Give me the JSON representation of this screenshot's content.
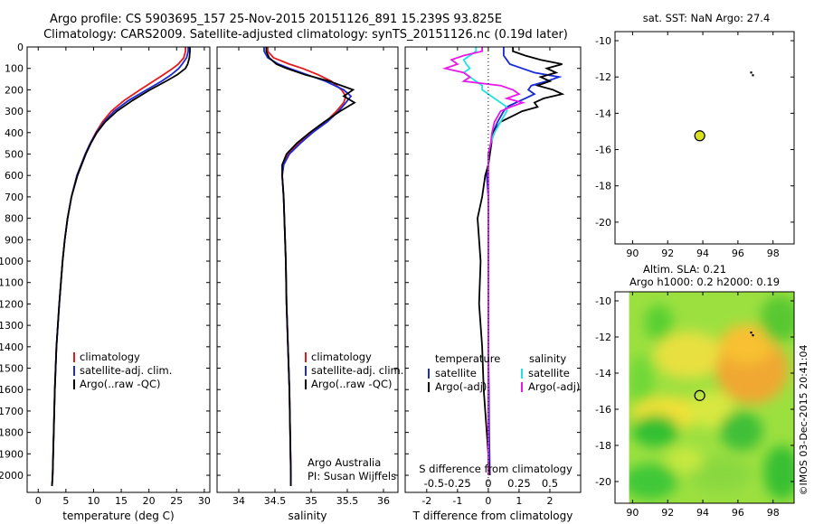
{
  "header": {
    "line1": "Argo profile: CS 5903695_157 25-Nov-2015 20151126_891 15.239S 93.825E",
    "line2": "Climatology: CARS2009. Satellite-adjusted climatology: synTS_20151126.nc (0.19d later)"
  },
  "side_text": "©IMOS 03-Dec-2015 20:41:04",
  "colors": {
    "climatology": "#e81818",
    "satellite": "#1a2ad8",
    "argo": "#000000",
    "cyan": "#22e0e8",
    "magenta": "#e818e8"
  },
  "chart_data": [
    {
      "type": "line",
      "id": "temperature",
      "xlabel": "temperature (deg C)",
      "xlim": [
        -2,
        31
      ],
      "ylim": [
        0,
        2080
      ],
      "xticks": [
        0,
        5,
        10,
        15,
        20,
        25,
        30
      ],
      "yticks": [
        0,
        100,
        200,
        300,
        400,
        500,
        600,
        700,
        800,
        900,
        1000,
        1100,
        1200,
        1300,
        1400,
        1500,
        1600,
        1700,
        1800,
        1900,
        2000
      ],
      "legend": [
        "climatology",
        "satellite-adj. clim.",
        "Argo(..raw -QC)"
      ],
      "depth": [
        0,
        20,
        50,
        80,
        100,
        130,
        160,
        200,
        250,
        300,
        350,
        400,
        450,
        500,
        600,
        700,
        800,
        900,
        1000,
        1200,
        1400,
        1600,
        1800,
        2000,
        2050
      ],
      "series": [
        {
          "name": "climatology",
          "values": [
            26.6,
            26.6,
            26.3,
            25.3,
            24.3,
            22.6,
            20.8,
            18.4,
            15.5,
            13.2,
            11.6,
            10.4,
            9.4,
            8.5,
            7.0,
            6.0,
            5.3,
            4.8,
            4.4,
            3.8,
            3.3,
            3.0,
            2.8,
            2.6,
            2.5
          ]
        },
        {
          "name": "satellite-adj. clim.",
          "values": [
            27.1,
            27.1,
            26.8,
            26.0,
            25.4,
            24.0,
            22.3,
            19.6,
            16.3,
            13.7,
            11.9,
            10.5,
            9.4,
            8.5,
            7.0,
            6.0,
            5.3,
            4.8,
            4.4,
            3.8,
            3.3,
            3.0,
            2.8,
            2.6,
            2.5
          ]
        },
        {
          "name": "Argo(..raw -QC)",
          "values": [
            27.4,
            27.4,
            27.3,
            27.0,
            26.6,
            25.1,
            23.1,
            20.2,
            17.0,
            14.2,
            12.1,
            10.6,
            9.5,
            8.6,
            7.1,
            6.0,
            5.3,
            4.8,
            4.4,
            3.8,
            3.3,
            3.0,
            2.8,
            2.6,
            2.5
          ]
        }
      ]
    },
    {
      "type": "line",
      "id": "salinity",
      "xlabel": "salinity",
      "xlim": [
        33.7,
        36.2
      ],
      "ylim": [
        0,
        2080
      ],
      "xticks": [
        34,
        34.5,
        35,
        35.5,
        36
      ],
      "legend": [
        "climatology",
        "satellite-adj. clim.",
        "Argo(..raw -QC)"
      ],
      "credit": [
        "Argo Australia",
        "PI: Susan Wijffels"
      ],
      "depth": [
        0,
        20,
        50,
        80,
        100,
        130,
        160,
        200,
        230,
        260,
        300,
        350,
        400,
        450,
        500,
        550,
        600,
        700,
        800,
        1000,
        1200,
        1400,
        1600,
        1800,
        2000,
        2050
      ],
      "series": [
        {
          "name": "climatology",
          "values": [
            34.4,
            34.4,
            34.48,
            34.7,
            34.88,
            35.1,
            35.28,
            35.42,
            35.48,
            35.45,
            35.35,
            35.2,
            35.0,
            34.82,
            34.68,
            34.62,
            34.6,
            34.62,
            34.63,
            34.65,
            34.66,
            34.68,
            34.7,
            34.71,
            34.72,
            34.72
          ]
        },
        {
          "name": "satellite-adj. clim.",
          "values": [
            34.35,
            34.35,
            34.4,
            34.55,
            34.7,
            34.95,
            35.2,
            35.45,
            35.55,
            35.48,
            35.38,
            35.22,
            35.02,
            34.85,
            34.7,
            34.62,
            34.6,
            34.62,
            34.63,
            34.65,
            34.66,
            34.68,
            34.7,
            34.71,
            34.72,
            34.72
          ]
        },
        {
          "name": "Argo(..raw -QC)",
          "values": [
            34.38,
            34.38,
            34.42,
            34.52,
            34.66,
            34.92,
            35.25,
            35.58,
            35.45,
            35.6,
            35.4,
            35.18,
            34.98,
            34.8,
            34.66,
            34.6,
            34.6,
            34.62,
            34.63,
            34.65,
            34.66,
            34.68,
            34.7,
            34.71,
            34.72,
            34.72
          ]
        }
      ]
    },
    {
      "type": "line",
      "id": "difference",
      "xlabel": "T difference from climatology",
      "xlabel_top": "S difference from climatology",
      "xlim": [
        -2.7,
        3.0
      ],
      "ylim": [
        0,
        2080
      ],
      "xticks": [
        -2,
        -1,
        0,
        1,
        2
      ],
      "xticks_top_labels": [
        "-0.5",
        "-0.25",
        "0",
        "0.25",
        "0.5"
      ],
      "legend_headers": [
        "temperature",
        "salinity"
      ],
      "legend": [
        "satellite",
        "Argo(-adj)",
        "satellite",
        "Argo(-adj)"
      ],
      "depth": [
        0,
        20,
        40,
        60,
        80,
        100,
        120,
        140,
        160,
        180,
        200,
        220,
        240,
        260,
        280,
        300,
        350,
        400,
        450,
        500,
        550,
        600,
        700,
        800,
        900,
        1000,
        1200,
        1400,
        1600,
        1800,
        2000
      ],
      "series": [
        {
          "name": "temperature satellite",
          "values": [
            0.5,
            0.5,
            0.5,
            0.6,
            0.7,
            1.1,
            1.5,
            2.3,
            1.9,
            1.4,
            1.3,
            1.5,
            1.2,
            0.9,
            0.6,
            0.5,
            0.3,
            0.15,
            0.1,
            0.05,
            0.0,
            -0.05,
            0.0,
            0.0,
            0.0,
            0.0,
            0.0,
            0.0,
            0.02,
            0.03,
            0.05
          ]
        },
        {
          "name": "temperature Argo(-adj)",
          "values": [
            0.8,
            0.8,
            1.2,
            1.7,
            2.4,
            1.9,
            2.2,
            1.7,
            2.0,
            1.6,
            2.1,
            2.4,
            1.8,
            1.5,
            1.6,
            1.1,
            0.4,
            0.15,
            0.1,
            0.05,
            0.0,
            -0.1,
            -0.2,
            -0.35,
            -0.3,
            -0.25,
            -0.3,
            -0.2,
            -0.15,
            -0.05,
            0.05
          ]
        },
        {
          "name": "salinity satellite",
          "values": [
            -0.1,
            -0.1,
            -0.15,
            -0.2,
            -0.18,
            -0.15,
            -0.2,
            -0.15,
            -0.1,
            -0.05,
            -0.05,
            0.0,
            0.05,
            0.1,
            0.15,
            0.15,
            0.1,
            0.05,
            0.02,
            0.0,
            0.0,
            0.0,
            0.0,
            0.0,
            0.0,
            0.0,
            0.0,
            0.0,
            0.0,
            0.0,
            0.0
          ]
        },
        {
          "name": "salinity Argo(-adj)",
          "values": [
            -0.05,
            -0.05,
            -0.2,
            -0.3,
            -0.25,
            -0.35,
            -0.2,
            -0.15,
            -0.2,
            0.1,
            0.2,
            0.25,
            0.15,
            0.28,
            0.18,
            0.1,
            0.05,
            0.03,
            0.02,
            0.0,
            0.0,
            0.0,
            0.0,
            0.0,
            0.0,
            0.0,
            0.0,
            0.0,
            0.0,
            0.0,
            0.0
          ]
        }
      ]
    },
    {
      "type": "scatter",
      "id": "sst_map",
      "title": "sat. SST: NaN Argo: 27.4",
      "xlim": [
        89,
        99.2
      ],
      "ylim": [
        -21.2,
        -9.5
      ],
      "xticks": [
        90,
        92,
        94,
        96,
        98
      ],
      "yticks": [
        -10,
        -12,
        -14,
        -16,
        -18,
        -20
      ],
      "points": [
        {
          "x": 93.825,
          "y": -15.239,
          "color": "#d8e020"
        },
        {
          "x": 96.75,
          "y": -11.75,
          "color": "#000000"
        },
        {
          "x": 96.85,
          "y": -11.9,
          "color": "#000000"
        }
      ]
    },
    {
      "type": "heatmap",
      "id": "sla_map",
      "title_lines": [
        "Altim. SLA: 0.21",
        "Argo h1000: 0.2 h2000: 0.19"
      ],
      "xlim": [
        89,
        99.2
      ],
      "ylim": [
        -21.2,
        -9.5
      ],
      "xticks": [
        90,
        92,
        94,
        96,
        98
      ],
      "yticks": [
        -10,
        -12,
        -14,
        -16,
        -18,
        -20
      ],
      "points": [
        {
          "x": 93.825,
          "y": -15.239
        },
        {
          "x": 96.75,
          "y": -11.75
        },
        {
          "x": 96.85,
          "y": -11.9
        }
      ]
    }
  ]
}
